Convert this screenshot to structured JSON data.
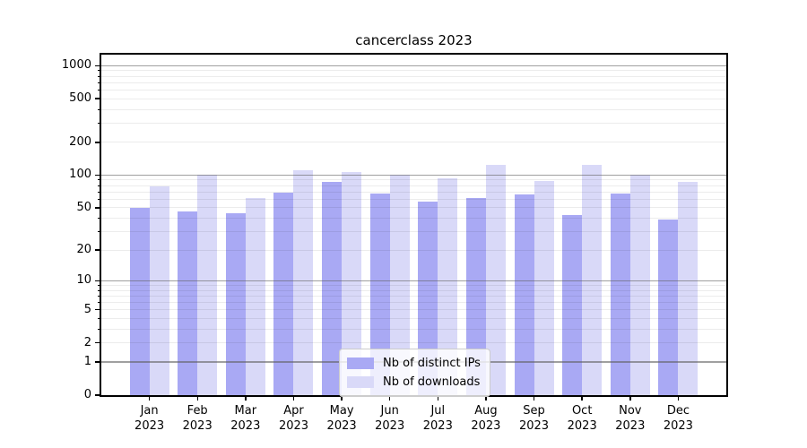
{
  "chart_data": {
    "type": "bar",
    "title": "cancerclass 2023",
    "categories": [
      "Jan",
      "Feb",
      "Mar",
      "Apr",
      "May",
      "Jun",
      "Jul",
      "Aug",
      "Sep",
      "Oct",
      "Nov",
      "Dec"
    ],
    "category_sublabel": "2023",
    "series": [
      {
        "name": "Nb of distinct IPs",
        "color": "#a9a9f4",
        "values": [
          50,
          46,
          44,
          69,
          87,
          67,
          57,
          62,
          66,
          43,
          68,
          39
        ]
      },
      {
        "name": "Nb of downloads",
        "color": "#d9d9f8",
        "values": [
          78,
          100,
          61,
          110,
          106,
          101,
          93,
          123,
          88,
          125,
          100,
          87
        ]
      }
    ],
    "yscale": "log1p",
    "yticks": [
      0,
      1,
      2,
      5,
      10,
      20,
      50,
      100,
      200,
      500,
      1000
    ],
    "ygrid_major": [
      1,
      10,
      100,
      1000
    ],
    "ygrid_minor_decades": [
      1,
      10,
      100
    ],
    "ylim": [
      0,
      1260
    ],
    "grid": true,
    "legend_position": "bottom-center",
    "axis_color": "#000000",
    "background_color": "#ffffff"
  }
}
